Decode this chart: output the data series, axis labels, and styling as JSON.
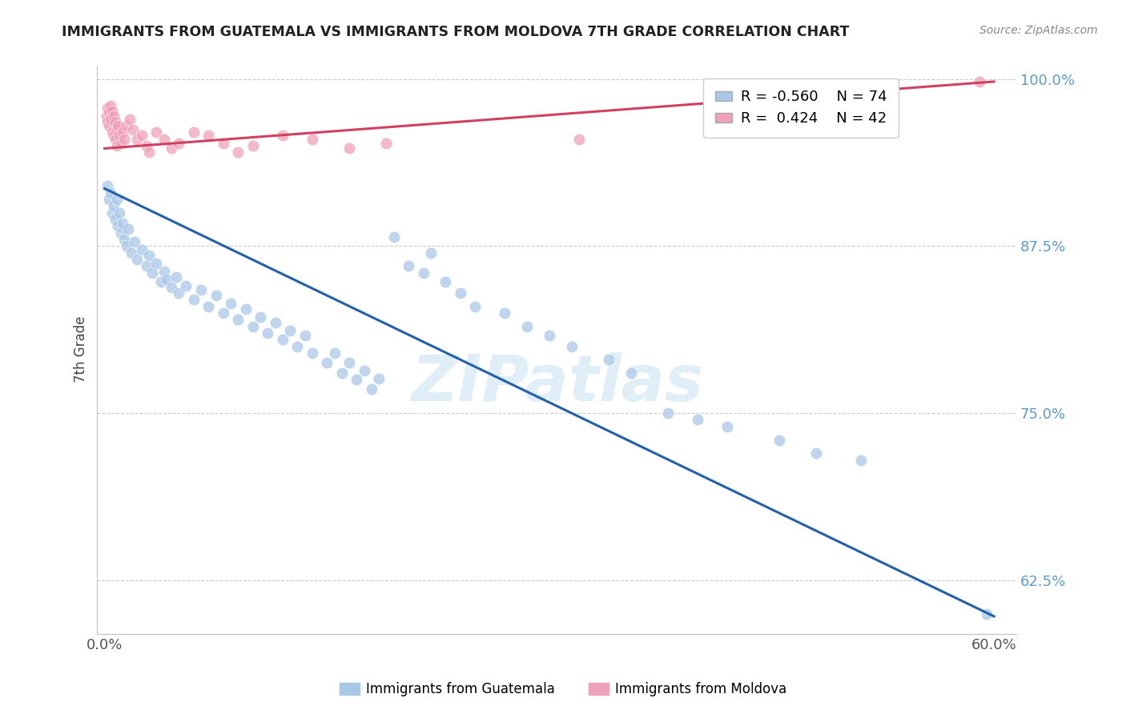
{
  "title": "IMMIGRANTS FROM GUATEMALA VS IMMIGRANTS FROM MOLDOVA 7TH GRADE CORRELATION CHART",
  "source": "Source: ZipAtlas.com",
  "ylabel": "7th Grade",
  "legend_labels": [
    "Immigrants from Guatemala",
    "Immigrants from Moldova"
  ],
  "xlim": [
    -0.005,
    0.615
  ],
  "ylim": [
    0.585,
    1.01
  ],
  "xtick_positions": [
    0.0,
    0.1,
    0.2,
    0.3,
    0.4,
    0.5,
    0.6
  ],
  "xticklabels": [
    "0.0%",
    "",
    "",
    "",
    "",
    "",
    "60.0%"
  ],
  "yticks_right": [
    1.0,
    0.875,
    0.75,
    0.625
  ],
  "ytick_right_labels": [
    "100.0%",
    "87.5%",
    "75.0%",
    "62.5%"
  ],
  "R_blue": -0.56,
  "N_blue": 74,
  "R_pink": 0.424,
  "N_pink": 42,
  "blue_color": "#a8c8e8",
  "blue_line_color": "#2060b0",
  "pink_color": "#f0a0b8",
  "pink_line_color": "#d04060",
  "background_color": "#ffffff",
  "watermark": "ZIPatlas",
  "blue_scatter_x": [
    0.002,
    0.003,
    0.004,
    0.005,
    0.006,
    0.007,
    0.008,
    0.009,
    0.01,
    0.011,
    0.012,
    0.013,
    0.015,
    0.016,
    0.018,
    0.02,
    0.022,
    0.025,
    0.028,
    0.03,
    0.032,
    0.035,
    0.038,
    0.04,
    0.042,
    0.045,
    0.048,
    0.05,
    0.055,
    0.06,
    0.065,
    0.07,
    0.075,
    0.08,
    0.085,
    0.09,
    0.095,
    0.1,
    0.105,
    0.11,
    0.115,
    0.12,
    0.125,
    0.13,
    0.135,
    0.14,
    0.15,
    0.155,
    0.16,
    0.165,
    0.17,
    0.175,
    0.18,
    0.185,
    0.195,
    0.205,
    0.215,
    0.22,
    0.23,
    0.24,
    0.25,
    0.27,
    0.285,
    0.3,
    0.315,
    0.34,
    0.355,
    0.38,
    0.4,
    0.42,
    0.455,
    0.48,
    0.51,
    0.595
  ],
  "blue_scatter_y": [
    0.92,
    0.91,
    0.915,
    0.9,
    0.905,
    0.895,
    0.91,
    0.89,
    0.9,
    0.885,
    0.892,
    0.88,
    0.875,
    0.888,
    0.87,
    0.878,
    0.865,
    0.872,
    0.86,
    0.868,
    0.855,
    0.862,
    0.848,
    0.856,
    0.85,
    0.844,
    0.852,
    0.84,
    0.845,
    0.835,
    0.842,
    0.83,
    0.838,
    0.825,
    0.832,
    0.82,
    0.828,
    0.815,
    0.822,
    0.81,
    0.818,
    0.805,
    0.812,
    0.8,
    0.808,
    0.795,
    0.788,
    0.795,
    0.78,
    0.788,
    0.775,
    0.782,
    0.768,
    0.776,
    0.882,
    0.86,
    0.855,
    0.87,
    0.848,
    0.84,
    0.83,
    0.825,
    0.815,
    0.808,
    0.8,
    0.79,
    0.78,
    0.75,
    0.745,
    0.74,
    0.73,
    0.72,
    0.715,
    0.6
  ],
  "pink_scatter_x": [
    0.001,
    0.002,
    0.002,
    0.003,
    0.003,
    0.004,
    0.004,
    0.005,
    0.005,
    0.006,
    0.006,
    0.007,
    0.007,
    0.008,
    0.008,
    0.009,
    0.01,
    0.011,
    0.012,
    0.013,
    0.015,
    0.017,
    0.019,
    0.022,
    0.025,
    0.028,
    0.03,
    0.035,
    0.04,
    0.045,
    0.05,
    0.06,
    0.07,
    0.08,
    0.09,
    0.1,
    0.12,
    0.14,
    0.165,
    0.19,
    0.32,
    0.59
  ],
  "pink_scatter_y": [
    0.972,
    0.978,
    0.968,
    0.975,
    0.965,
    0.98,
    0.97,
    0.976,
    0.96,
    0.972,
    0.958,
    0.968,
    0.955,
    0.962,
    0.95,
    0.965,
    0.958,
    0.952,
    0.96,
    0.955,
    0.965,
    0.97,
    0.962,
    0.955,
    0.958,
    0.95,
    0.945,
    0.96,
    0.955,
    0.948,
    0.952,
    0.96,
    0.958,
    0.952,
    0.945,
    0.95,
    0.958,
    0.955,
    0.948,
    0.952,
    0.955,
    0.998
  ],
  "blue_line_x": [
    0.0,
    0.6
  ],
  "blue_line_y": [
    0.918,
    0.598
  ],
  "pink_line_x": [
    0.0,
    0.6
  ],
  "pink_line_y": [
    0.948,
    0.998
  ]
}
